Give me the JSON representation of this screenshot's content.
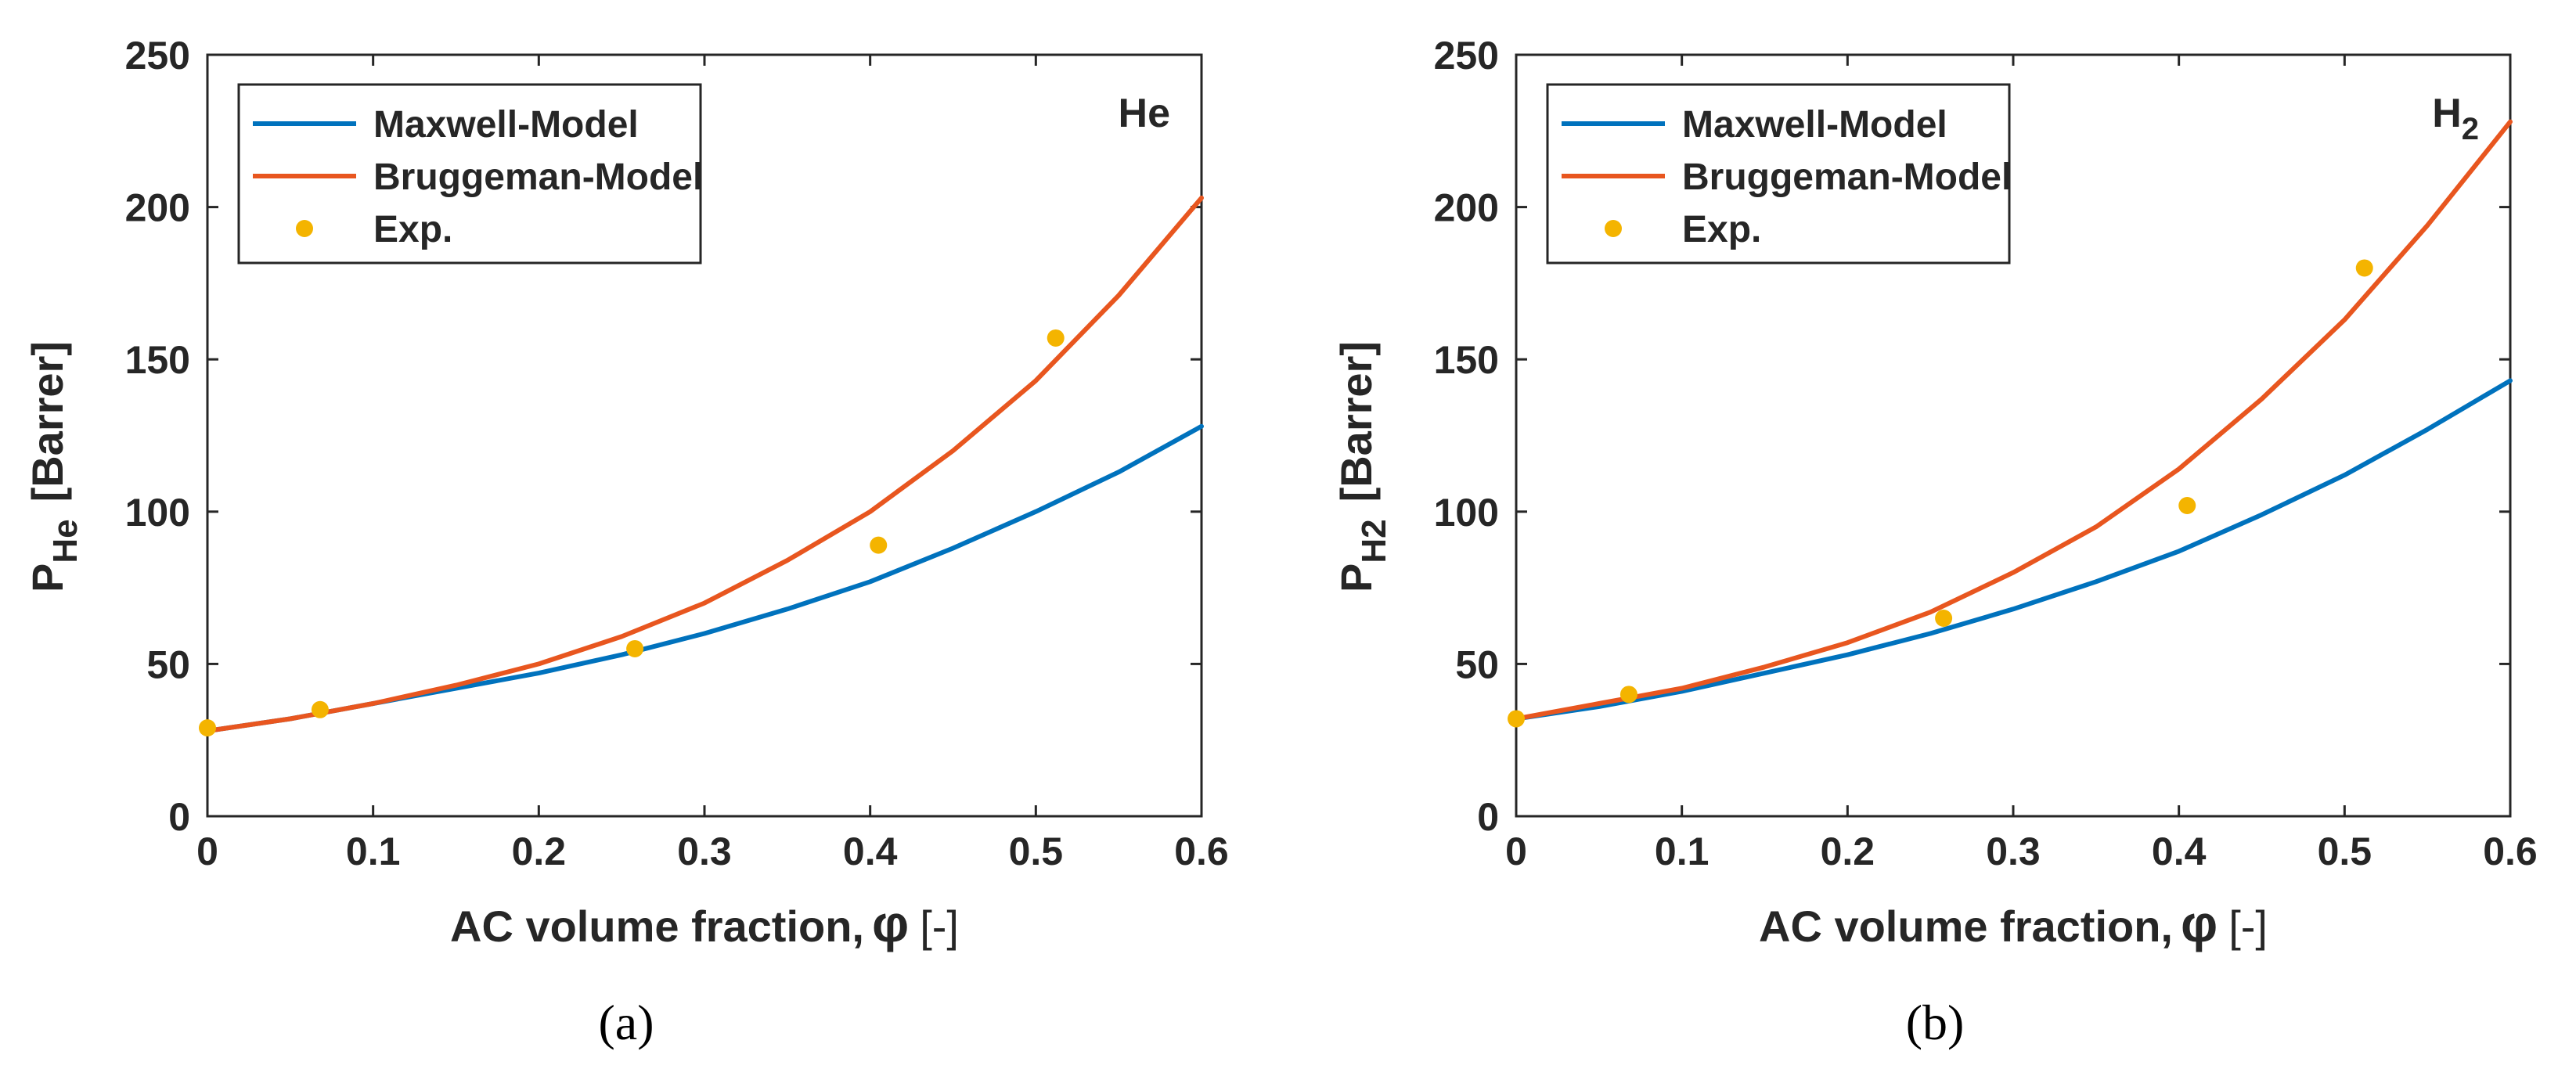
{
  "figure": {
    "panel_labels": [
      "(a)",
      "(b)"
    ]
  },
  "colors": {
    "maxwell": "#0072BD",
    "bruggeman": "#E8561F",
    "exp": "#F4B400",
    "axis": "#262626"
  },
  "chart_data": [
    {
      "type": "line",
      "panel_label_text": "(a)",
      "annotation": "He",
      "ylabel_main": "P",
      "ylabel_sub": "He",
      "ylabel_rest": "[Barrer]",
      "xlabel_main": "AC volume fraction,",
      "xlabel_symbol": "φ",
      "xlabel_rest": "[-]",
      "xlim": [
        0,
        0.6
      ],
      "ylim": [
        0,
        250
      ],
      "xticks": [
        0,
        0.1,
        0.2,
        0.3,
        0.4,
        0.5,
        0.6
      ],
      "xtick_labels": [
        "0",
        "0.1",
        "0.2",
        "0.3",
        "0.4",
        "0.5",
        "0.6"
      ],
      "yticks": [
        0,
        50,
        100,
        150,
        200,
        250
      ],
      "ytick_labels": [
        "0",
        "50",
        "100",
        "150",
        "200",
        "250"
      ],
      "legend_position": "top-left",
      "series": [
        {
          "name": "Maxwell-Model",
          "kind": "line",
          "color": "#0072BD",
          "x": [
            0,
            0.05,
            0.1,
            0.15,
            0.2,
            0.25,
            0.3,
            0.35,
            0.4,
            0.45,
            0.5,
            0.55,
            0.6
          ],
          "y": [
            28,
            32,
            37,
            42,
            47,
            53,
            60,
            68,
            77,
            88,
            100,
            113,
            128
          ]
        },
        {
          "name": "Bruggeman-Model",
          "kind": "line",
          "color": "#E8561F",
          "x": [
            0,
            0.05,
            0.1,
            0.15,
            0.2,
            0.25,
            0.3,
            0.35,
            0.4,
            0.45,
            0.5,
            0.55,
            0.6
          ],
          "y": [
            28,
            32,
            37,
            43,
            50,
            59,
            70,
            84,
            100,
            120,
            143,
            171,
            203
          ]
        },
        {
          "name": "Exp.",
          "kind": "scatter",
          "color": "#F4B400",
          "x": [
            0,
            0.068,
            0.258,
            0.405,
            0.512
          ],
          "y": [
            29,
            35,
            55,
            89,
            157
          ]
        }
      ]
    },
    {
      "type": "line",
      "panel_label_text": "(b)",
      "annotation": "H",
      "annotation_sub": "2",
      "ylabel_main": "P",
      "ylabel_sub": "H2",
      "ylabel_rest": "[Barrer]",
      "xlabel_main": "AC volume fraction,",
      "xlabel_symbol": "φ",
      "xlabel_rest": "[-]",
      "xlim": [
        0,
        0.6
      ],
      "ylim": [
        0,
        250
      ],
      "xticks": [
        0,
        0.1,
        0.2,
        0.3,
        0.4,
        0.5,
        0.6
      ],
      "xtick_labels": [
        "0",
        "0.1",
        "0.2",
        "0.3",
        "0.4",
        "0.5",
        "0.6"
      ],
      "yticks": [
        0,
        50,
        100,
        150,
        200,
        250
      ],
      "ytick_labels": [
        "0",
        "50",
        "100",
        "150",
        "200",
        "250"
      ],
      "legend_position": "top-left",
      "series": [
        {
          "name": "Maxwell-Model",
          "kind": "line",
          "color": "#0072BD",
          "x": [
            0,
            0.05,
            0.1,
            0.15,
            0.2,
            0.25,
            0.3,
            0.35,
            0.4,
            0.45,
            0.5,
            0.55,
            0.6
          ],
          "y": [
            32,
            36,
            41,
            47,
            53,
            60,
            68,
            77,
            87,
            99,
            112,
            127,
            143
          ]
        },
        {
          "name": "Bruggeman-Model",
          "kind": "line",
          "color": "#E8561F",
          "x": [
            0,
            0.05,
            0.1,
            0.15,
            0.2,
            0.25,
            0.3,
            0.35,
            0.4,
            0.45,
            0.5,
            0.55,
            0.6
          ],
          "y": [
            32,
            37,
            42,
            49,
            57,
            67,
            80,
            95,
            114,
            137,
            163,
            194,
            228
          ]
        },
        {
          "name": "Exp.",
          "kind": "scatter",
          "color": "#F4B400",
          "x": [
            0,
            0.068,
            0.258,
            0.405,
            0.512
          ],
          "y": [
            32,
            40,
            65,
            102,
            180
          ]
        }
      ]
    }
  ]
}
